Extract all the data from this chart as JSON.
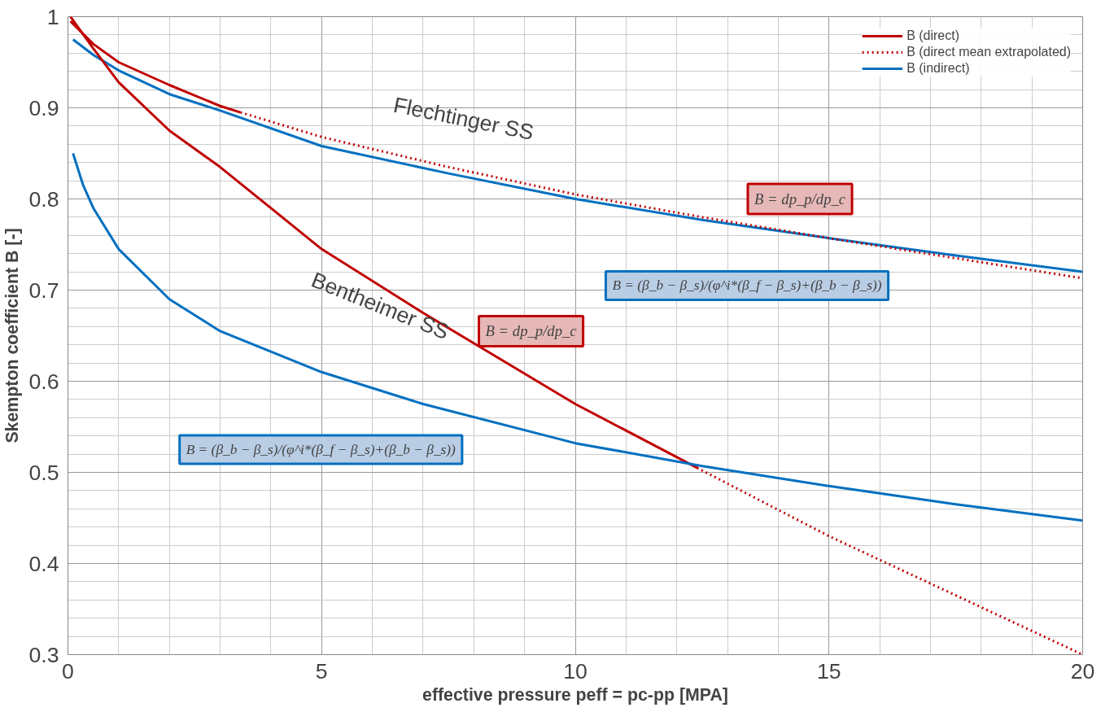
{
  "chart_data": {
    "type": "line",
    "xlabel": "effective pressure peff = pc-pp [MPA]",
    "ylabel": "Skempton coefficient B [-]",
    "xlim": [
      0,
      20
    ],
    "ylim": [
      0.3,
      1
    ],
    "xticks": [
      0,
      5,
      10,
      15,
      20
    ],
    "yticks": [
      0.3,
      0.4,
      0.5,
      0.6,
      0.7,
      0.8,
      0.9,
      1
    ],
    "grid": true,
    "legend": "top right",
    "marker": "none",
    "series": [
      {
        "name": "B (direct)",
        "color": "#c00000",
        "line_style": "solid",
        "x": [
          0.05,
          0.5,
          1,
          2,
          3,
          3.4
        ],
        "values": [
          0.995,
          0.97,
          0.95,
          0.925,
          0.902,
          0.895
        ]
      },
      {
        "name": "B (direct mean extrapolated)",
        "color": "#c00000",
        "line_style": "dotted",
        "x": [
          3.4,
          5,
          7.5,
          10,
          12.5,
          15,
          17.5,
          20
        ],
        "values": [
          0.895,
          0.868,
          0.835,
          0.805,
          0.78,
          0.757,
          0.735,
          0.713
        ]
      },
      {
        "name": "B (indirect)",
        "color": "#0070c0",
        "line_style": "solid",
        "x": [
          0.1,
          0.5,
          1,
          2,
          3,
          5,
          7.5,
          10,
          12.5,
          15,
          17.5,
          20
        ],
        "values": [
          0.975,
          0.958,
          0.941,
          0.915,
          0.897,
          0.858,
          0.828,
          0.8,
          0.777,
          0.757,
          0.738,
          0.72
        ]
      },
      {
        "color": "#c00000",
        "line_style": "solid",
        "x": [
          0.05,
          0.5,
          1,
          2,
          3,
          5,
          7,
          10,
          12.4
        ],
        "values": [
          1.0,
          0.965,
          0.928,
          0.875,
          0.835,
          0.745,
          0.675,
          0.575,
          0.505
        ]
      },
      {
        "color": "#c00000",
        "line_style": "dotted",
        "x": [
          12.4,
          15,
          17.5,
          20
        ],
        "values": [
          0.505,
          0.43,
          0.365,
          0.3
        ]
      },
      {
        "color": "#0070c0",
        "line_style": "solid",
        "x": [
          0.1,
          0.3,
          0.5,
          1,
          2,
          3,
          5,
          7,
          10,
          12.5,
          15,
          17.5,
          20
        ],
        "values": [
          0.85,
          0.815,
          0.79,
          0.745,
          0.69,
          0.655,
          0.61,
          0.575,
          0.532,
          0.507,
          0.485,
          0.465,
          0.447
        ]
      }
    ],
    "annotations": [
      "Flechtinger SS",
      "Bentheimer SS",
      "B = dp_p/dp_c",
      "B = dp_p/dp_c",
      "B = (β_b − β_s)/(φ^i*(β_f − β_s)+(β_b − β_s))",
      "B = (β_b − β_s)/(φ^i*(β_f − β_s)+(β_b − β_s))"
    ]
  }
}
